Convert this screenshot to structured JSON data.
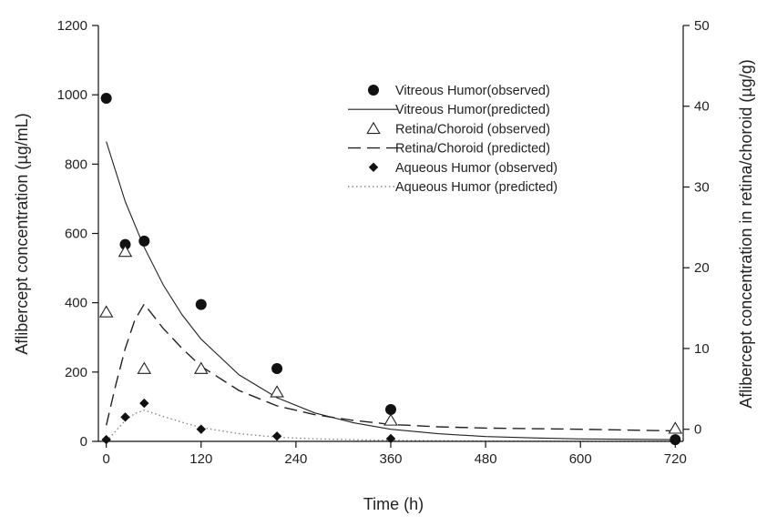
{
  "chart_data": {
    "type": "scatter",
    "xlabel": "Time (h)",
    "ylabel": "Aflibercept concentration (µg/mL)",
    "y2label": "Aflibercept concentration in retina/choroid (µg/g)",
    "xlim": [
      -10,
      730
    ],
    "xticks": [
      0,
      120,
      240,
      360,
      480,
      600,
      720
    ],
    "ylim": [
      0,
      1200
    ],
    "yticks": [
      0,
      200,
      400,
      600,
      800,
      1000,
      1200
    ],
    "y2lim": [
      -1.5,
      50
    ],
    "y2ticks": [
      0,
      10,
      20,
      30,
      40,
      50
    ],
    "grid": false,
    "legend_position": "top-right",
    "series": [
      {
        "name": "Vitreous Humor(observed)",
        "kind": "points",
        "marker": "filled-circle",
        "axis": "left",
        "x": [
          0,
          24,
          48,
          120,
          216,
          360,
          720
        ],
        "y": [
          990,
          568,
          578,
          395,
          210,
          92,
          5
        ]
      },
      {
        "name": "Vitreous Humor(predicted)",
        "kind": "line",
        "dash": "solid",
        "axis": "left",
        "x": [
          0,
          24,
          48,
          72,
          96,
          120,
          168,
          216,
          264,
          312,
          360,
          420,
          480,
          540,
          600,
          660,
          720
        ],
        "y": [
          865,
          692,
          560,
          452,
          365,
          295,
          192,
          126,
          82,
          54,
          35,
          22,
          14,
          10,
          7,
          6,
          5
        ]
      },
      {
        "name": "Retina/Choroid (observed)",
        "kind": "points",
        "marker": "open-triangle",
        "axis": "right",
        "x": [
          0,
          24,
          48,
          120,
          216,
          360,
          720
        ],
        "y": [
          14.5,
          22,
          7.5,
          7.5,
          4.6,
          1.1,
          0.1
        ]
      },
      {
        "name": "Retina/Choroid (predicted)",
        "kind": "line",
        "dash": "dashed",
        "axis": "right",
        "x": [
          0,
          12,
          24,
          36,
          48,
          72,
          96,
          120,
          168,
          216,
          264,
          312,
          360,
          420,
          480,
          600,
          720
        ],
        "y": [
          0.5,
          5.5,
          10,
          13.5,
          15.5,
          12.5,
          10,
          7.8,
          4.8,
          2.9,
          1.8,
          1.1,
          0.6,
          0.3,
          0.15,
          0,
          -0.2
        ]
      },
      {
        "name": "Aqueous Humor (observed)",
        "kind": "points",
        "marker": "filled-diamond",
        "axis": "left",
        "x": [
          0,
          24,
          48,
          120,
          216,
          360,
          720
        ],
        "y": [
          5,
          70,
          110,
          35,
          15,
          8,
          2
        ]
      },
      {
        "name": "Aqueous Humor (predicted)",
        "kind": "line",
        "dash": "dotted",
        "axis": "left",
        "x": [
          0,
          12,
          24,
          36,
          48,
          72,
          96,
          120,
          168,
          216,
          264,
          360,
          480,
          600,
          720
        ],
        "y": [
          0,
          30,
          60,
          80,
          90,
          72,
          55,
          40,
          22,
          12,
          7,
          3,
          1,
          0,
          0
        ]
      }
    ]
  }
}
